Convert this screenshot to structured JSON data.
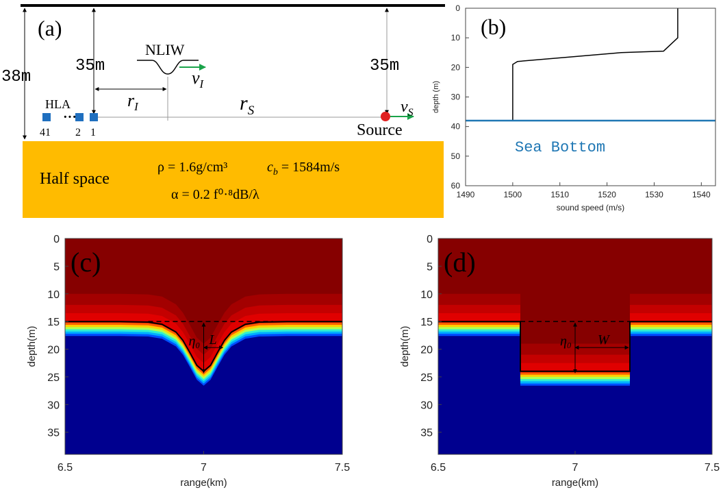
{
  "panel_a": {
    "label": "(a)",
    "depth_total": "38m",
    "depth_array": "35m",
    "depth_source": "35m",
    "wave": "NLIW",
    "wave_speed": {
      "main": "v",
      "sub": "I"
    },
    "wave_range": {
      "main": "r",
      "sub": "I"
    },
    "source_range": {
      "main": "r",
      "sub": "S"
    },
    "source_speed": {
      "main": "v",
      "sub": "S"
    },
    "array": "HLA",
    "elements": [
      "41",
      "2",
      "1"
    ],
    "source": "Source",
    "half_space": "Half space",
    "density": "ρ = 1.6g/cm³",
    "sound_speed": {
      "main": "c",
      "sub": "b",
      "rest": " = 1584m/s"
    },
    "attenuation": "α = 0.2 f⁰·⁸dB/λ"
  },
  "chart_data": [
    {
      "type": "line",
      "label": "(b)",
      "xlabel": "sound speed (m/s)",
      "ylabel": "depth (m)",
      "x": [
        1535,
        1535,
        1532,
        1523,
        1512,
        1501,
        1500,
        1500
      ],
      "values": [
        0,
        10,
        14.5,
        15,
        16.5,
        18,
        19,
        38
      ],
      "color": "#000000",
      "xlim": [
        1490,
        1543
      ],
      "xticks": [
        1490,
        1500,
        1510,
        1520,
        1530,
        1540
      ],
      "ylim": [
        0,
        60
      ],
      "yticks": [
        0,
        10,
        20,
        30,
        40,
        50,
        60
      ],
      "y_inverted": true,
      "bottom": 38,
      "bottom_color": "#1f77b4",
      "annotation": "Sea Bottom"
    },
    {
      "type": "interface",
      "label": "(c)",
      "xlabel": "range(km)",
      "ylabel": "depth(m)",
      "x": [
        6.5,
        6.7,
        6.8,
        6.85,
        6.9,
        6.925,
        6.95,
        6.975,
        7,
        7.025,
        7.05,
        7.075,
        7.1,
        7.15,
        7.2,
        7.3,
        7.5
      ],
      "values": [
        15,
        15,
        15.1,
        15.5,
        16.9,
        18.4,
        20.6,
        22.9,
        24,
        22.9,
        20.6,
        18.4,
        16.9,
        15.5,
        15.1,
        15,
        15
      ],
      "xlim": [
        6.5,
        7.5
      ],
      "xticks": [
        6.5,
        7,
        7.5
      ],
      "ylim": [
        0,
        39
      ],
      "yticks": [
        0,
        5,
        10,
        15,
        20,
        25,
        30,
        35
      ],
      "y_inverted": true,
      "reference_depth": 15,
      "reference_x": [
        6.8,
        7.25
      ],
      "amplitude_label": "η₀",
      "width_label": "L"
    },
    {
      "type": "interface",
      "label": "(d)",
      "xlabel": "range(km)",
      "ylabel": "depth(m)",
      "x": [
        6.5,
        6.8,
        6.8,
        7.2,
        7.2,
        7.5
      ],
      "values": [
        15,
        15,
        24,
        24,
        15,
        15
      ],
      "xlim": [
        6.5,
        7.5
      ],
      "xticks": [
        6.5,
        7,
        7.5
      ],
      "ylim": [
        0,
        39
      ],
      "yticks": [
        0,
        5,
        10,
        15,
        20,
        25,
        30,
        35
      ],
      "y_inverted": true,
      "reference_depth": 15,
      "reference_x": [
        6.8,
        7.2
      ],
      "amplitude_label": "η₀",
      "width_label": "W"
    }
  ]
}
